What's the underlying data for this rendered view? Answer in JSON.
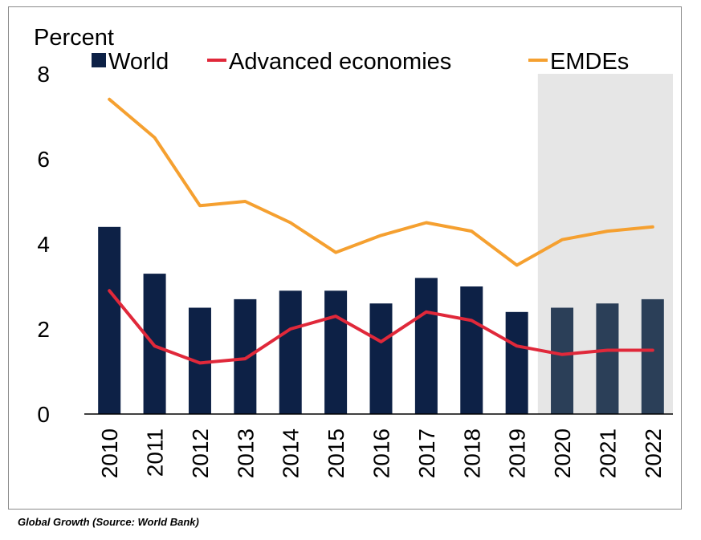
{
  "chart_data": {
    "type": "bar+line",
    "ylabel": "Percent",
    "ylim": [
      0,
      8
    ],
    "yticks": [
      0,
      2,
      4,
      6,
      8
    ],
    "categories": [
      "2010",
      "2011",
      "2012",
      "2013",
      "2014",
      "2015",
      "2016",
      "2017",
      "2018",
      "2019",
      "2020",
      "2021",
      "2022"
    ],
    "forecast_start": "2020",
    "series": [
      {
        "name": "World",
        "kind": "bar",
        "color": "#0d2146",
        "forecast_color": "#2b3f58",
        "values": [
          4.4,
          3.3,
          2.5,
          2.7,
          2.9,
          2.9,
          2.6,
          3.2,
          3.0,
          2.4,
          2.5,
          2.6,
          2.7
        ]
      },
      {
        "name": "Advanced economies",
        "kind": "line",
        "color": "#e0283a",
        "values": [
          2.9,
          1.6,
          1.2,
          1.3,
          2.0,
          2.3,
          1.7,
          2.4,
          2.2,
          1.6,
          1.4,
          1.5,
          1.5
        ]
      },
      {
        "name": "EMDEs",
        "kind": "line",
        "color": "#f5a030",
        "values": [
          7.4,
          6.5,
          4.9,
          5.0,
          4.5,
          3.8,
          4.2,
          4.5,
          4.3,
          3.5,
          4.1,
          4.3,
          4.4
        ]
      }
    ],
    "legend_position": "top",
    "forecast_shading_color": "#e6e6e6"
  },
  "caption": "Global Growth (Source: World Bank)"
}
